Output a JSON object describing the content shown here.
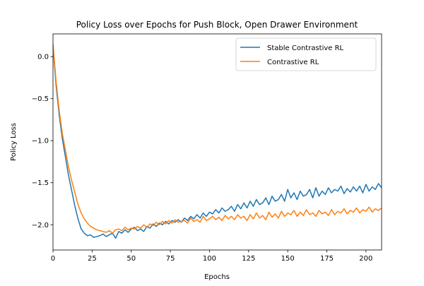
{
  "chart_data": {
    "type": "line",
    "title": "Policy Loss over Epochs for Push Block, Open Drawer Environment",
    "xlabel": "Epochs",
    "ylabel": "Policy Loss",
    "xlim": [
      0,
      210
    ],
    "ylim": [
      -2.3,
      0.27
    ],
    "xticks": [
      0,
      25,
      50,
      75,
      100,
      125,
      150,
      175,
      200
    ],
    "xtick_labels": [
      "0",
      "25",
      "50",
      "75",
      "100",
      "125",
      "150",
      "175",
      "200"
    ],
    "yticks": [
      0.0,
      -0.5,
      -1.0,
      -1.5,
      -2.0
    ],
    "ytick_labels": [
      "0.0",
      "−0.5",
      "−1.0",
      "−1.5",
      "−2.0"
    ],
    "grid": false,
    "legend_position": "top-right",
    "series": [
      {
        "name": "Stable Contrastive RL",
        "color": "#1f77b4",
        "x": [
          0,
          2,
          4,
          6,
          8,
          10,
          12,
          14,
          16,
          18,
          20,
          22,
          24,
          26,
          28,
          30,
          32,
          34,
          36,
          38,
          40,
          42,
          44,
          46,
          48,
          50,
          52,
          54,
          56,
          58,
          60,
          62,
          64,
          66,
          68,
          70,
          72,
          74,
          76,
          78,
          80,
          82,
          84,
          86,
          88,
          90,
          92,
          94,
          96,
          98,
          100,
          102,
          104,
          106,
          108,
          110,
          112,
          114,
          116,
          118,
          120,
          122,
          124,
          126,
          128,
          130,
          132,
          134,
          136,
          138,
          140,
          142,
          144,
          146,
          148,
          150,
          152,
          154,
          156,
          158,
          160,
          162,
          164,
          166,
          168,
          170,
          172,
          174,
          176,
          178,
          180,
          182,
          184,
          186,
          188,
          190,
          192,
          194,
          196,
          198,
          200,
          202,
          204,
          206,
          208,
          210
        ],
        "y": [
          0.12,
          -0.35,
          -0.7,
          -0.98,
          -1.2,
          -1.42,
          -1.6,
          -1.78,
          -1.93,
          -2.05,
          -2.1,
          -2.13,
          -2.12,
          -2.15,
          -2.14,
          -2.13,
          -2.11,
          -2.14,
          -2.12,
          -2.1,
          -2.16,
          -2.08,
          -2.1,
          -2.06,
          -2.09,
          -2.05,
          -2.03,
          -2.07,
          -2.05,
          -2.08,
          -2.02,
          -2.04,
          -1.99,
          -2.02,
          -1.98,
          -2.0,
          -1.96,
          -1.99,
          -1.95,
          -1.97,
          -1.94,
          -1.97,
          -1.92,
          -1.95,
          -1.9,
          -1.93,
          -1.88,
          -1.92,
          -1.86,
          -1.9,
          -1.85,
          -1.87,
          -1.82,
          -1.86,
          -1.8,
          -1.84,
          -1.82,
          -1.78,
          -1.84,
          -1.76,
          -1.81,
          -1.74,
          -1.8,
          -1.72,
          -1.78,
          -1.7,
          -1.76,
          -1.74,
          -1.68,
          -1.76,
          -1.66,
          -1.72,
          -1.7,
          -1.64,
          -1.72,
          -1.58,
          -1.68,
          -1.62,
          -1.7,
          -1.6,
          -1.66,
          -1.64,
          -1.58,
          -1.68,
          -1.56,
          -1.66,
          -1.6,
          -1.64,
          -1.56,
          -1.62,
          -1.58,
          -1.6,
          -1.54,
          -1.63,
          -1.57,
          -1.61,
          -1.55,
          -1.6,
          -1.54,
          -1.62,
          -1.52,
          -1.6,
          -1.55,
          -1.58,
          -1.51,
          -1.56
        ]
      },
      {
        "name": "Contrastive RL",
        "color": "#ff7f0e",
        "x": [
          0,
          2,
          4,
          6,
          8,
          10,
          12,
          14,
          16,
          18,
          20,
          22,
          24,
          26,
          28,
          30,
          32,
          34,
          36,
          38,
          40,
          42,
          44,
          46,
          48,
          50,
          52,
          54,
          56,
          58,
          60,
          62,
          64,
          66,
          68,
          70,
          72,
          74,
          76,
          78,
          80,
          82,
          84,
          86,
          88,
          90,
          92,
          94,
          96,
          98,
          100,
          102,
          104,
          106,
          108,
          110,
          112,
          114,
          116,
          118,
          120,
          122,
          124,
          126,
          128,
          130,
          132,
          134,
          136,
          138,
          140,
          142,
          144,
          146,
          148,
          150,
          152,
          154,
          156,
          158,
          160,
          162,
          164,
          166,
          168,
          170,
          172,
          174,
          176,
          178,
          180,
          182,
          184,
          186,
          188,
          190,
          192,
          194,
          196,
          198,
          200,
          202,
          204,
          206,
          208,
          210
        ],
        "y": [
          0.15,
          -0.3,
          -0.65,
          -0.92,
          -1.12,
          -1.32,
          -1.48,
          -1.62,
          -1.76,
          -1.86,
          -1.93,
          -1.98,
          -2.02,
          -2.04,
          -2.06,
          -2.07,
          -2.08,
          -2.09,
          -2.07,
          -2.1,
          -2.06,
          -2.05,
          -2.07,
          -2.03,
          -2.06,
          -2.04,
          -2.05,
          -2.02,
          -2.04,
          -2.0,
          -2.03,
          -1.99,
          -2.01,
          -1.97,
          -2.0,
          -1.96,
          -1.99,
          -1.95,
          -1.98,
          -1.94,
          -1.97,
          -1.96,
          -1.95,
          -1.98,
          -1.92,
          -1.96,
          -1.94,
          -1.97,
          -1.9,
          -1.95,
          -1.93,
          -1.9,
          -1.94,
          -1.91,
          -1.95,
          -1.89,
          -1.93,
          -1.9,
          -1.94,
          -1.88,
          -1.92,
          -1.9,
          -1.95,
          -1.88,
          -1.93,
          -1.86,
          -1.92,
          -1.89,
          -1.94,
          -1.85,
          -1.91,
          -1.87,
          -1.92,
          -1.84,
          -1.9,
          -1.86,
          -1.88,
          -1.83,
          -1.9,
          -1.85,
          -1.89,
          -1.82,
          -1.88,
          -1.86,
          -1.9,
          -1.83,
          -1.87,
          -1.85,
          -1.89,
          -1.82,
          -1.88,
          -1.84,
          -1.86,
          -1.81,
          -1.87,
          -1.83,
          -1.85,
          -1.8,
          -1.86,
          -1.82,
          -1.84,
          -1.79,
          -1.85,
          -1.81,
          -1.83,
          -1.8
        ]
      }
    ]
  }
}
